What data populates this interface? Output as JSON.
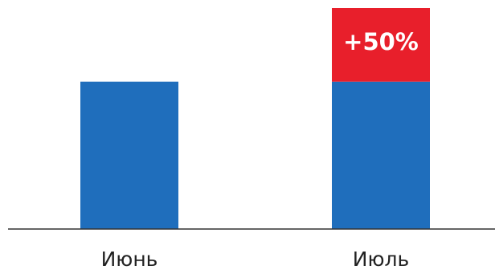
{
  "chart_data": {
    "type": "stacked-bar",
    "categories": [
      "Июнь",
      "Июль"
    ],
    "series": [
      {
        "color": "#1f6ebc",
        "values": [
          100,
          100
        ]
      },
      {
        "color": "#e81f2b",
        "values": [
          null,
          50
        ],
        "value_labels": [
          null,
          "+50%"
        ]
      }
    ],
    "ylim": [
      0,
      150
    ]
  }
}
